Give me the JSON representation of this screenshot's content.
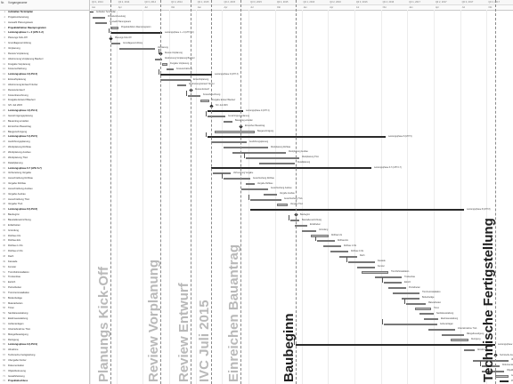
{
  "header": {
    "col_id": "Nr.",
    "col_name": "Vorgangsname"
  },
  "timeline": {
    "top": [
      "Qtl 1, 2014",
      "Qtl 2, 2014",
      "Qtl 3, 2014",
      "Qtl 4, 2014",
      "Qtl 1, 2015",
      "Qtl 2, 2015",
      "Qtl 3, 2015",
      "Qtl 4, 2015",
      "Qtl 1, 2016",
      "Qtl 2, 2016",
      "Qtl 3, 2016",
      "Qtl 4, 2016",
      "Qtl 1, 2017",
      "Qtl 2, 2017",
      "Qtl 3, 2017",
      "Qtl 4, 2017"
    ],
    "bottom": [
      "Jan",
      "Apr",
      "Jul",
      "Okt",
      "Jan",
      "Apr",
      "Jul",
      "Okt",
      "Jan",
      "Apr",
      "Jul",
      "Okt",
      "Jan",
      "Apr",
      "Jul",
      "Okt"
    ]
  },
  "milestones": [
    {
      "label": "Planungs Kick-Off",
      "dark": false
    },
    {
      "label": "Review Vorplanung",
      "dark": false
    },
    {
      "label": "Review Entwurf",
      "dark": false
    },
    {
      "label": "IVC Juli 2015",
      "dark": false
    },
    {
      "label": "Einreichen Bauantrag",
      "dark": false
    },
    {
      "label": "Baubeginn",
      "dark": true
    },
    {
      "label": "Technische Fertigstellung",
      "dark": true
    }
  ],
  "tasks": [
    {
      "id": "1",
      "name": "Aufstellen Terminplan",
      "sum": true
    },
    {
      "id": "2",
      "name": "Projektvorbereitung",
      "sum": false
    },
    {
      "id": "3",
      "name": "Auswahl Planungsteam",
      "sum": false
    },
    {
      "id": "4",
      "name": "Projektdefinition Raumprogramm",
      "sum": true
    },
    {
      "id": "5",
      "name": "Leistungsphase 1 + 2 (LPH 1-2)",
      "sum": true
    },
    {
      "id": "6",
      "name": "Planungs Kick-Off",
      "sum": false
    },
    {
      "id": "7",
      "name": "Grundlagenermittlung",
      "sum": false
    },
    {
      "id": "8",
      "name": "Vorplanung",
      "sum": false
    },
    {
      "id": "9",
      "name": "Review Vorplanung",
      "sum": false
    },
    {
      "id": "10",
      "name": "Abstimmung Vorplanung Bauherr",
      "sum": false
    },
    {
      "id": "11",
      "name": "Freigabe Vorplanung",
      "sum": false
    },
    {
      "id": "12",
      "name": "Kostenschätzung",
      "sum": false
    },
    {
      "id": "13",
      "name": "Leistungsphase 3 (LPH 3)",
      "sum": true
    },
    {
      "id": "14",
      "name": "Entwurfsplanung",
      "sum": false
    },
    {
      "id": "15",
      "name": "Abstimmung Entwurf Nutzer",
      "sum": false
    },
    {
      "id": "16",
      "name": "Review Entwurf",
      "sum": false
    },
    {
      "id": "17",
      "name": "Kostenberechnung",
      "sum": false
    },
    {
      "id": "18",
      "name": "Freigabe Entwurf Bauherr",
      "sum": false
    },
    {
      "id": "19",
      "name": "IVC Juli 2015",
      "sum": false
    },
    {
      "id": "20",
      "name": "Leistungsphase 4 (LPH 4)",
      "sum": true
    },
    {
      "id": "21",
      "name": "Genehmigungsplanung",
      "sum": false
    },
    {
      "id": "22",
      "name": "Bauantrag erstellen",
      "sum": false
    },
    {
      "id": "23",
      "name": "Einreichen Bauantrag",
      "sum": false
    },
    {
      "id": "24",
      "name": "Baugenehmigung",
      "sum": false
    },
    {
      "id": "25",
      "name": "Leistungsphase 5 (LPH 5)",
      "sum": true
    },
    {
      "id": "26",
      "name": "Ausführungsplanung",
      "sum": false
    },
    {
      "id": "27",
      "name": "Werkplanung Rohbau",
      "sum": false
    },
    {
      "id": "28",
      "name": "Werkplanung Ausbau",
      "sum": false
    },
    {
      "id": "29",
      "name": "Werkplanung TGA",
      "sum": false
    },
    {
      "id": "30",
      "name": "Detailplanung",
      "sum": false
    },
    {
      "id": "31",
      "name": "Leistungsphase 6-7 (LPH 6-7)",
      "sum": true
    },
    {
      "id": "32",
      "name": "Vorbereitung Vergabe",
      "sum": false
    },
    {
      "id": "33",
      "name": "Ausschreibung Rohbau",
      "sum": false
    },
    {
      "id": "34",
      "name": "Vergabe Rohbau",
      "sum": false
    },
    {
      "id": "35",
      "name": "Ausschreibung Ausbau",
      "sum": false
    },
    {
      "id": "36",
      "name": "Vergabe Ausbau",
      "sum": false
    },
    {
      "id": "37",
      "name": "Ausschreibung TGA",
      "sum": false
    },
    {
      "id": "38",
      "name": "Vergabe TGA",
      "sum": false
    },
    {
      "id": "39",
      "name": "Leistungsphase 8 (LPH 8)",
      "sum": true
    },
    {
      "id": "40",
      "name": "Baubeginn",
      "sum": false
    },
    {
      "id": "41",
      "name": "Baustelleneinrichtung",
      "sum": false
    },
    {
      "id": "42",
      "name": "Erdarbeiten",
      "sum": false
    },
    {
      "id": "43",
      "name": "Gründung",
      "sum": false
    },
    {
      "id": "44",
      "name": "Rohbau UG",
      "sum": false
    },
    {
      "id": "45",
      "name": "Rohbau EG",
      "sum": false
    },
    {
      "id": "46",
      "name": "Rohbau 1.OG",
      "sum": false
    },
    {
      "id": "47",
      "name": "Rohbau 2.OG",
      "sum": false
    },
    {
      "id": "48",
      "name": "Dach",
      "sum": false
    },
    {
      "id": "49",
      "name": "Fassade",
      "sum": false
    },
    {
      "id": "50",
      "name": "Fenster",
      "sum": false
    },
    {
      "id": "51",
      "name": "TGA Rohinstallation",
      "sum": false
    },
    {
      "id": "52",
      "name": "Trockenbau",
      "sum": false
    },
    {
      "id": "53",
      "name": "Estrich",
      "sum": false
    },
    {
      "id": "54",
      "name": "Putzarbeiten",
      "sum": false
    },
    {
      "id": "55",
      "name": "TGA Feininstallation",
      "sum": false
    },
    {
      "id": "56",
      "name": "Bodenbeläge",
      "sum": false
    },
    {
      "id": "57",
      "name": "Malerarbeiten",
      "sum": false
    },
    {
      "id": "58",
      "name": "Türen",
      "sum": false
    },
    {
      "id": "59",
      "name": "Sanitärausstattung",
      "sum": false
    },
    {
      "id": "60",
      "name": "Elektroausstattung",
      "sum": false
    },
    {
      "id": "61",
      "name": "Außenanlagen",
      "sum": false
    },
    {
      "id": "62",
      "name": "Inbetriebnahme TGA",
      "sum": false
    },
    {
      "id": "63",
      "name": "Mängelbeseitigung",
      "sum": false
    },
    {
      "id": "64",
      "name": "Reinigung",
      "sum": false
    },
    {
      "id": "65",
      "name": "Leistungsphase 9 (LPH 9)",
      "sum": true
    },
    {
      "id": "66",
      "name": "Abnahme",
      "sum": false
    },
    {
      "id": "67",
      "name": "Technische Fertigstellung",
      "sum": false
    },
    {
      "id": "68",
      "name": "Übergabe Nutzer",
      "sum": false
    },
    {
      "id": "69",
      "name": "Dokumentation",
      "sum": false
    },
    {
      "id": "70",
      "name": "Objektbetreuung",
      "sum": false
    },
    {
      "id": "71",
      "name": "Gewährleistung",
      "sum": false
    },
    {
      "id": "72",
      "name": "Projektabschluss",
      "sum": true
    }
  ]
}
